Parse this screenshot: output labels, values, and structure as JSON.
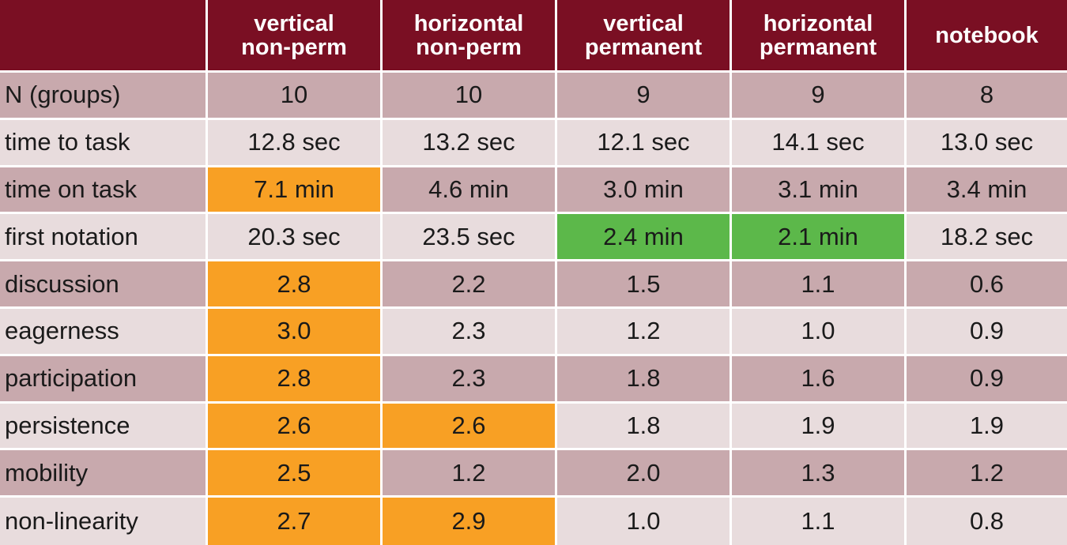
{
  "colors": {
    "header_bg": "#7a0f23",
    "header_text": "#ffffff",
    "row_dark": "#c8a9ad",
    "row_light": "#e8dcdd",
    "highlight_orange": "#f8a024",
    "highlight_green": "#5cb84a"
  },
  "table": {
    "corner": "",
    "columns": [
      {
        "line1": "vertical",
        "line2": "non-perm"
      },
      {
        "line1": "horizontal",
        "line2": "non-perm"
      },
      {
        "line1": "vertical",
        "line2": "permanent"
      },
      {
        "line1": "horizontal",
        "line2": "permanent"
      },
      {
        "line1": "notebook",
        "line2": ""
      }
    ],
    "rows": [
      {
        "label": "N (groups)",
        "values": [
          "10",
          "10",
          "9",
          "9",
          "8"
        ],
        "highlights": [
          "",
          "",
          "",
          "",
          ""
        ]
      },
      {
        "label": "time to task",
        "values": [
          "12.8 sec",
          "13.2 sec",
          "12.1 sec",
          "14.1 sec",
          "13.0 sec"
        ],
        "highlights": [
          "",
          "",
          "",
          "",
          ""
        ]
      },
      {
        "label": "time on task",
        "values": [
          "7.1 min",
          "4.6 min",
          "3.0 min",
          "3.1 min",
          "3.4 min"
        ],
        "highlights": [
          "orange",
          "",
          "",
          "",
          ""
        ]
      },
      {
        "label": "first notation",
        "values": [
          "20.3 sec",
          "23.5 sec",
          "2.4 min",
          "2.1 min",
          "18.2 sec"
        ],
        "highlights": [
          "",
          "",
          "green",
          "green",
          ""
        ]
      },
      {
        "label": "discussion",
        "values": [
          "2.8",
          "2.2",
          "1.5",
          "1.1",
          "0.6"
        ],
        "highlights": [
          "orange",
          "",
          "",
          "",
          ""
        ]
      },
      {
        "label": "eagerness",
        "values": [
          "3.0",
          "2.3",
          "1.2",
          "1.0",
          "0.9"
        ],
        "highlights": [
          "orange",
          "",
          "",
          "",
          ""
        ]
      },
      {
        "label": "participation",
        "values": [
          "2.8",
          "2.3",
          "1.8",
          "1.6",
          "0.9"
        ],
        "highlights": [
          "orange",
          "",
          "",
          "",
          ""
        ]
      },
      {
        "label": "persistence",
        "values": [
          "2.6",
          "2.6",
          "1.8",
          "1.9",
          "1.9"
        ],
        "highlights": [
          "orange",
          "orange",
          "",
          "",
          ""
        ]
      },
      {
        "label": "mobility",
        "values": [
          "2.5",
          "1.2",
          "2.0",
          "1.3",
          "1.2"
        ],
        "highlights": [
          "orange",
          "",
          "",
          "",
          ""
        ]
      },
      {
        "label": "non-linearity",
        "values": [
          "2.7",
          "2.9",
          "1.0",
          "1.1",
          "0.8"
        ],
        "highlights": [
          "orange",
          "orange",
          "",
          "",
          ""
        ]
      }
    ]
  }
}
